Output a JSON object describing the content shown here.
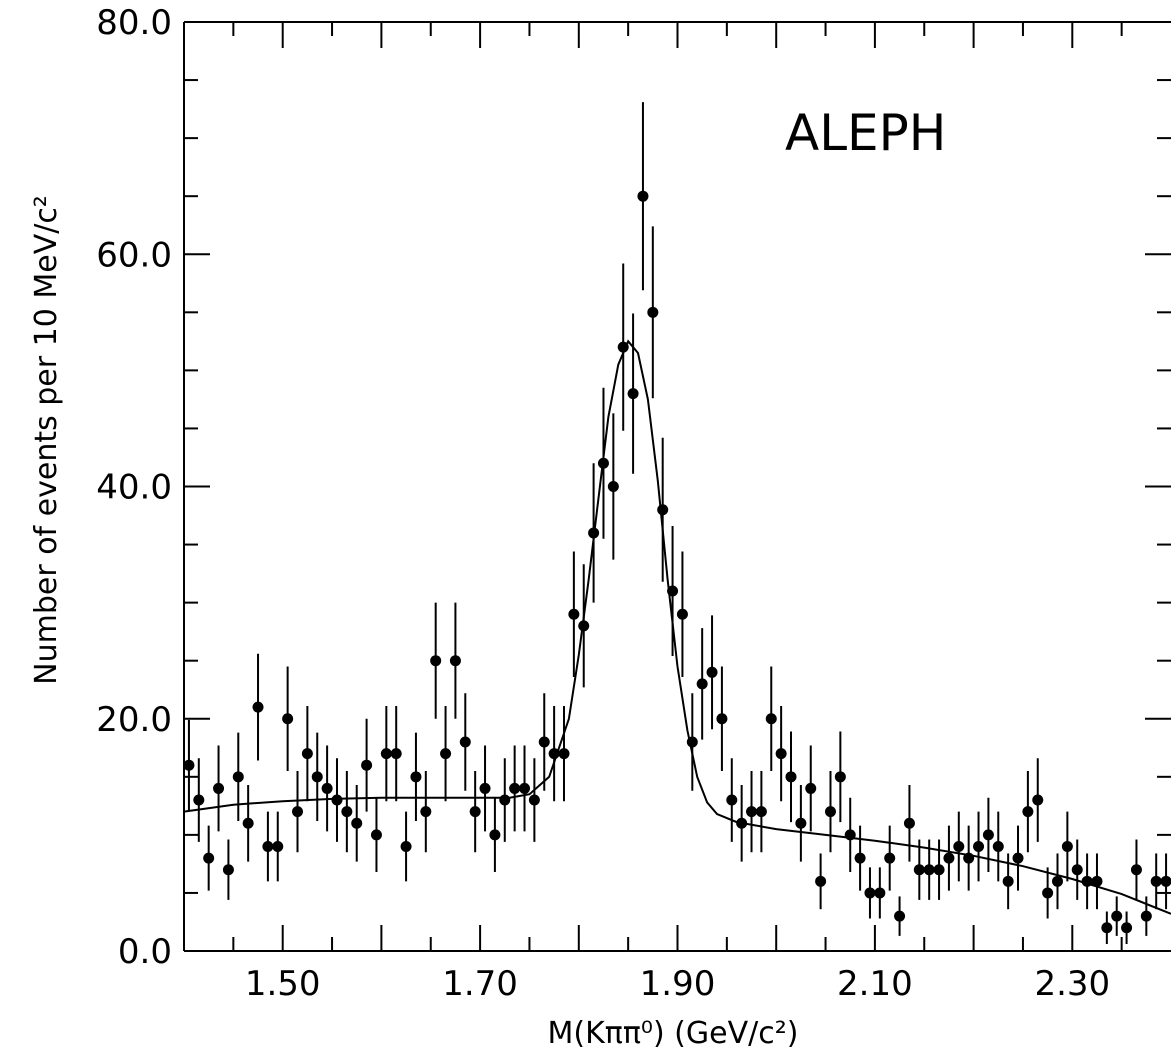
{
  "chart_data": {
    "type": "scatter",
    "title": "",
    "annotation": "ALEPH",
    "xlabel": "M(Kππ⁰)  (GeV/c²)",
    "ylabel": "Number of events per 10 MeV/c²",
    "xlim": [
      1.4,
      2.4
    ],
    "ylim": [
      0,
      80
    ],
    "x_ticks": [
      "1.50",
      "1.70",
      "1.90",
      "2.10",
      "2.30"
    ],
    "x_tick_values": [
      1.5,
      1.7,
      1.9,
      2.1,
      2.3
    ],
    "y_ticks": [
      "0.0",
      "20.0",
      "40.0",
      "60.0",
      "80.0"
    ],
    "y_tick_values": [
      0,
      20,
      40,
      60,
      80
    ],
    "grid": false,
    "legend": "none",
    "colors": {
      "marker": "#000000",
      "line": "#000000"
    },
    "series": [
      {
        "kind": "points_with_errors",
        "points": [
          {
            "x": 1.405,
            "y": 16.0,
            "err": 3.9
          },
          {
            "x": 1.415,
            "y": 13.0,
            "err": 3.6
          },
          {
            "x": 1.425,
            "y": 8.0,
            "err": 2.8
          },
          {
            "x": 1.435,
            "y": 14.0,
            "err": 3.7
          },
          {
            "x": 1.445,
            "y": 7.0,
            "err": 2.6
          },
          {
            "x": 1.455,
            "y": 15.0,
            "err": 3.8
          },
          {
            "x": 1.465,
            "y": 11.0,
            "err": 3.3
          },
          {
            "x": 1.475,
            "y": 21.0,
            "err": 4.6
          },
          {
            "x": 1.485,
            "y": 9.0,
            "err": 3.0
          },
          {
            "x": 1.495,
            "y": 9.0,
            "err": 3.0
          },
          {
            "x": 1.505,
            "y": 20.0,
            "err": 4.5
          },
          {
            "x": 1.515,
            "y": 12.0,
            "err": 3.5
          },
          {
            "x": 1.525,
            "y": 17.0,
            "err": 4.1
          },
          {
            "x": 1.535,
            "y": 15.0,
            "err": 3.8
          },
          {
            "x": 1.545,
            "y": 14.0,
            "err": 3.7
          },
          {
            "x": 1.555,
            "y": 13.0,
            "err": 3.6
          },
          {
            "x": 1.565,
            "y": 12.0,
            "err": 3.5
          },
          {
            "x": 1.575,
            "y": 11.0,
            "err": 3.3
          },
          {
            "x": 1.585,
            "y": 16.0,
            "err": 4.0
          },
          {
            "x": 1.595,
            "y": 10.0,
            "err": 3.2
          },
          {
            "x": 1.605,
            "y": 17.0,
            "err": 4.1
          },
          {
            "x": 1.615,
            "y": 17.0,
            "err": 4.1
          },
          {
            "x": 1.625,
            "y": 9.0,
            "err": 3.0
          },
          {
            "x": 1.635,
            "y": 15.0,
            "err": 3.8
          },
          {
            "x": 1.645,
            "y": 12.0,
            "err": 3.5
          },
          {
            "x": 1.655,
            "y": 25.0,
            "err": 5.0
          },
          {
            "x": 1.665,
            "y": 17.0,
            "err": 4.1
          },
          {
            "x": 1.675,
            "y": 25.0,
            "err": 5.0
          },
          {
            "x": 1.685,
            "y": 18.0,
            "err": 4.2
          },
          {
            "x": 1.695,
            "y": 12.0,
            "err": 3.5
          },
          {
            "x": 1.705,
            "y": 14.0,
            "err": 3.7
          },
          {
            "x": 1.715,
            "y": 10.0,
            "err": 3.2
          },
          {
            "x": 1.725,
            "y": 13.0,
            "err": 3.6
          },
          {
            "x": 1.735,
            "y": 14.0,
            "err": 3.7
          },
          {
            "x": 1.745,
            "y": 14.0,
            "err": 3.7
          },
          {
            "x": 1.755,
            "y": 13.0,
            "err": 3.6
          },
          {
            "x": 1.765,
            "y": 18.0,
            "err": 4.2
          },
          {
            "x": 1.775,
            "y": 17.0,
            "err": 4.1
          },
          {
            "x": 1.785,
            "y": 17.0,
            "err": 4.1
          },
          {
            "x": 1.795,
            "y": 29.0,
            "err": 5.4
          },
          {
            "x": 1.805,
            "y": 28.0,
            "err": 5.3
          },
          {
            "x": 1.815,
            "y": 36.0,
            "err": 6.0
          },
          {
            "x": 1.825,
            "y": 42.0,
            "err": 6.5
          },
          {
            "x": 1.835,
            "y": 40.0,
            "err": 6.3
          },
          {
            "x": 1.845,
            "y": 52.0,
            "err": 7.2
          },
          {
            "x": 1.855,
            "y": 48.0,
            "err": 6.9
          },
          {
            "x": 1.865,
            "y": 65.0,
            "err": 8.1
          },
          {
            "x": 1.875,
            "y": 55.0,
            "err": 7.4
          },
          {
            "x": 1.885,
            "y": 38.0,
            "err": 6.2
          },
          {
            "x": 1.895,
            "y": 31.0,
            "err": 5.6
          },
          {
            "x": 1.905,
            "y": 29.0,
            "err": 5.4
          },
          {
            "x": 1.915,
            "y": 18.0,
            "err": 4.2
          },
          {
            "x": 1.925,
            "y": 23.0,
            "err": 4.8
          },
          {
            "x": 1.935,
            "y": 24.0,
            "err": 4.9
          },
          {
            "x": 1.945,
            "y": 20.0,
            "err": 4.5
          },
          {
            "x": 1.955,
            "y": 13.0,
            "err": 3.6
          },
          {
            "x": 1.965,
            "y": 11.0,
            "err": 3.3
          },
          {
            "x": 1.975,
            "y": 12.0,
            "err": 3.5
          },
          {
            "x": 1.985,
            "y": 12.0,
            "err": 3.5
          },
          {
            "x": 1.995,
            "y": 20.0,
            "err": 4.5
          },
          {
            "x": 2.005,
            "y": 17.0,
            "err": 4.1
          },
          {
            "x": 2.015,
            "y": 15.0,
            "err": 3.9
          },
          {
            "x": 2.025,
            "y": 11.0,
            "err": 3.3
          },
          {
            "x": 2.035,
            "y": 14.0,
            "err": 3.7
          },
          {
            "x": 2.045,
            "y": 6.0,
            "err": 2.4
          },
          {
            "x": 2.055,
            "y": 12.0,
            "err": 3.5
          },
          {
            "x": 2.065,
            "y": 15.0,
            "err": 3.9
          },
          {
            "x": 2.075,
            "y": 10.0,
            "err": 3.2
          },
          {
            "x": 2.085,
            "y": 8.0,
            "err": 2.8
          },
          {
            "x": 2.095,
            "y": 5.0,
            "err": 2.2
          },
          {
            "x": 2.105,
            "y": 5.0,
            "err": 2.2
          },
          {
            "x": 2.115,
            "y": 8.0,
            "err": 2.8
          },
          {
            "x": 2.125,
            "y": 3.0,
            "err": 1.7
          },
          {
            "x": 2.135,
            "y": 11.0,
            "err": 3.3
          },
          {
            "x": 2.145,
            "y": 7.0,
            "err": 2.6
          },
          {
            "x": 2.155,
            "y": 7.0,
            "err": 2.6
          },
          {
            "x": 2.165,
            "y": 7.0,
            "err": 2.6
          },
          {
            "x": 2.175,
            "y": 8.0,
            "err": 2.8
          },
          {
            "x": 2.185,
            "y": 9.0,
            "err": 3.0
          },
          {
            "x": 2.195,
            "y": 8.0,
            "err": 2.8
          },
          {
            "x": 2.205,
            "y": 9.0,
            "err": 3.0
          },
          {
            "x": 2.215,
            "y": 10.0,
            "err": 3.2
          },
          {
            "x": 2.225,
            "y": 9.0,
            "err": 3.0
          },
          {
            "x": 2.235,
            "y": 6.0,
            "err": 2.4
          },
          {
            "x": 2.245,
            "y": 8.0,
            "err": 2.8
          },
          {
            "x": 2.255,
            "y": 12.0,
            "err": 3.5
          },
          {
            "x": 2.265,
            "y": 13.0,
            "err": 3.6
          },
          {
            "x": 2.275,
            "y": 5.0,
            "err": 2.2
          },
          {
            "x": 2.285,
            "y": 6.0,
            "err": 2.4
          },
          {
            "x": 2.295,
            "y": 9.0,
            "err": 3.0
          },
          {
            "x": 2.305,
            "y": 7.0,
            "err": 2.6
          },
          {
            "x": 2.315,
            "y": 6.0,
            "err": 2.4
          },
          {
            "x": 2.325,
            "y": 6.0,
            "err": 2.4
          },
          {
            "x": 2.335,
            "y": 2.0,
            "err": 1.4
          },
          {
            "x": 2.345,
            "y": 3.0,
            "err": 1.7
          },
          {
            "x": 2.355,
            "y": 2.0,
            "err": 1.4
          },
          {
            "x": 2.365,
            "y": 7.0,
            "err": 2.6
          },
          {
            "x": 2.375,
            "y": 3.0,
            "err": 1.7
          },
          {
            "x": 2.385,
            "y": 6.0,
            "err": 2.4
          },
          {
            "x": 2.395,
            "y": 6.0,
            "err": 2.4
          }
        ]
      },
      {
        "kind": "fit_curve",
        "points": [
          {
            "x": 1.4,
            "y": 12.0
          },
          {
            "x": 1.45,
            "y": 12.6
          },
          {
            "x": 1.5,
            "y": 12.9
          },
          {
            "x": 1.55,
            "y": 13.1
          },
          {
            "x": 1.6,
            "y": 13.2
          },
          {
            "x": 1.65,
            "y": 13.2
          },
          {
            "x": 1.7,
            "y": 13.2
          },
          {
            "x": 1.73,
            "y": 13.2
          },
          {
            "x": 1.75,
            "y": 13.5
          },
          {
            "x": 1.77,
            "y": 15.0
          },
          {
            "x": 1.79,
            "y": 20.0
          },
          {
            "x": 1.8,
            "y": 25.5
          },
          {
            "x": 1.81,
            "y": 32.0
          },
          {
            "x": 1.82,
            "y": 39.0
          },
          {
            "x": 1.83,
            "y": 46.0
          },
          {
            "x": 1.84,
            "y": 50.5
          },
          {
            "x": 1.85,
            "y": 52.5
          },
          {
            "x": 1.86,
            "y": 51.5
          },
          {
            "x": 1.87,
            "y": 47.5
          },
          {
            "x": 1.88,
            "y": 40.5
          },
          {
            "x": 1.89,
            "y": 32.0
          },
          {
            "x": 1.9,
            "y": 24.5
          },
          {
            "x": 1.91,
            "y": 19.0
          },
          {
            "x": 1.92,
            "y": 15.0
          },
          {
            "x": 1.93,
            "y": 12.8
          },
          {
            "x": 1.94,
            "y": 11.8
          },
          {
            "x": 1.96,
            "y": 11.1
          },
          {
            "x": 2.0,
            "y": 10.5
          },
          {
            "x": 2.05,
            "y": 10.0
          },
          {
            "x": 2.1,
            "y": 9.5
          },
          {
            "x": 2.15,
            "y": 8.9
          },
          {
            "x": 2.2,
            "y": 8.2
          },
          {
            "x": 2.25,
            "y": 7.3
          },
          {
            "x": 2.3,
            "y": 6.2
          },
          {
            "x": 2.35,
            "y": 4.9
          },
          {
            "x": 2.4,
            "y": 3.2
          }
        ]
      }
    ]
  }
}
